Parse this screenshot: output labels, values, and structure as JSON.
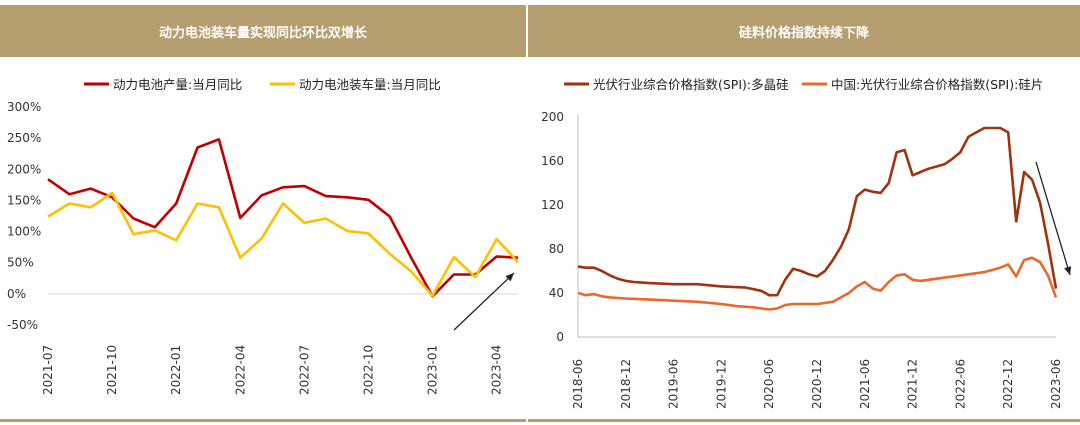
{
  "panels": [
    {
      "title": "动力电池装车量实现同比环比双增长"
    },
    {
      "title": "硅料价格指数持续下降"
    }
  ],
  "chart_data": [
    {
      "type": "line",
      "ylim": [
        -50,
        300
      ],
      "yticks": [
        300,
        250,
        200,
        150,
        100,
        50,
        0,
        -50
      ],
      "yticklabels": [
        "300%",
        "250%",
        "200%",
        "150%",
        "100%",
        "50%",
        "0%",
        "-50%"
      ],
      "x": [
        "2021-07",
        "2021-08",
        "2021-09",
        "2021-10",
        "2021-11",
        "2021-12",
        "2022-01",
        "2022-02",
        "2022-03",
        "2022-04",
        "2022-05",
        "2022-06",
        "2022-07",
        "2022-08",
        "2022-09",
        "2022-10",
        "2022-11",
        "2022-12",
        "2023-01",
        "2023-02",
        "2023-03",
        "2023-04",
        "2023-05"
      ],
      "xticks": [
        "2021-07",
        "2021-10",
        "2022-01",
        "2022-04",
        "2022-07",
        "2022-10",
        "2023-01",
        "2023-04"
      ],
      "legend_position": "top",
      "series": [
        {
          "name": "动力电池产量:当月同比",
          "color": "#c00000",
          "values": [
            184,
            160,
            169,
            155,
            121,
            107,
            145,
            235,
            248,
            122,
            158,
            171,
            173,
            157,
            155,
            151,
            124,
            58,
            -4,
            31,
            31,
            60,
            58
          ]
        },
        {
          "name": "动力电池装车量:当月同比",
          "color": "#ffc000",
          "values": [
            124,
            145,
            139,
            162,
            96,
            102,
            86,
            145,
            139,
            58,
            89,
            145,
            114,
            121,
            101,
            97,
            64,
            36,
            -3,
            59,
            27,
            88,
            51
          ]
        }
      ],
      "annotations": [
        {
          "type": "arrow",
          "direction": "up-right",
          "color": "#222222"
        }
      ]
    },
    {
      "type": "line",
      "ylim": [
        0,
        200
      ],
      "yticks": [
        200,
        160,
        120,
        80,
        40,
        0
      ],
      "xticks": [
        "2018-06",
        "2018-12",
        "2019-06",
        "2019-12",
        "2020-06",
        "2020-12",
        "2021-06",
        "2021-12",
        "2022-06",
        "2022-12",
        "2023-06"
      ],
      "legend_position": "top",
      "series": [
        {
          "name": "光伏行业综合价格指数(SPI):多晶硅",
          "color": "#a0330f",
          "points": [
            [
              "2018-06",
              64
            ],
            [
              "2018-07",
              63
            ],
            [
              "2018-08",
              63
            ],
            [
              "2018-09",
              60
            ],
            [
              "2018-10",
              56
            ],
            [
              "2018-11",
              53
            ],
            [
              "2018-12",
              51
            ],
            [
              "2019-01",
              50
            ],
            [
              "2019-03",
              49
            ],
            [
              "2019-06",
              48
            ],
            [
              "2019-09",
              48
            ],
            [
              "2019-12",
              46
            ],
            [
              "2020-03",
              45
            ],
            [
              "2020-05",
              42
            ],
            [
              "2020-06",
              38
            ],
            [
              "2020-07",
              38
            ],
            [
              "2020-08",
              52
            ],
            [
              "2020-09",
              62
            ],
            [
              "2020-10",
              60
            ],
            [
              "2020-11",
              57
            ],
            [
              "2020-12",
              55
            ],
            [
              "2021-01",
              60
            ],
            [
              "2021-02",
              70
            ],
            [
              "2021-03",
              82
            ],
            [
              "2021-04",
              98
            ],
            [
              "2021-05",
              128
            ],
            [
              "2021-06",
              134
            ],
            [
              "2021-07",
              132
            ],
            [
              "2021-08",
              131
            ],
            [
              "2021-09",
              140
            ],
            [
              "2021-10",
              168
            ],
            [
              "2021-11",
              170
            ],
            [
              "2021-12",
              147
            ],
            [
              "2022-01",
              150
            ],
            [
              "2022-02",
              153
            ],
            [
              "2022-03",
              155
            ],
            [
              "2022-04",
              157
            ],
            [
              "2022-05",
              162
            ],
            [
              "2022-06",
              168
            ],
            [
              "2022-07",
              182
            ],
            [
              "2022-08",
              186
            ],
            [
              "2022-09",
              190
            ],
            [
              "2022-10",
              190
            ],
            [
              "2022-11",
              190
            ],
            [
              "2022-12",
              186
            ],
            [
              "2023-01",
              105
            ],
            [
              "2023-02",
              150
            ],
            [
              "2023-03",
              143
            ],
            [
              "2023-04",
              122
            ],
            [
              "2023-05",
              85
            ],
            [
              "2023-06",
              44
            ]
          ]
        },
        {
          "name": "中国:光伏行业综合价格指数(SPI):硅片",
          "color": "#e8692a",
          "points": [
            [
              "2018-06",
              40
            ],
            [
              "2018-07",
              38
            ],
            [
              "2018-08",
              39
            ],
            [
              "2018-09",
              37
            ],
            [
              "2018-10",
              36
            ],
            [
              "2018-12",
              35
            ],
            [
              "2019-03",
              34
            ],
            [
              "2019-06",
              33
            ],
            [
              "2019-09",
              32
            ],
            [
              "2019-12",
              30
            ],
            [
              "2020-02",
              28
            ],
            [
              "2020-04",
              27
            ],
            [
              "2020-06",
              25
            ],
            [
              "2020-07",
              26
            ],
            [
              "2020-08",
              29
            ],
            [
              "2020-09",
              30
            ],
            [
              "2020-12",
              30
            ],
            [
              "2021-02",
              32
            ],
            [
              "2021-03",
              36
            ],
            [
              "2021-04",
              40
            ],
            [
              "2021-05",
              46
            ],
            [
              "2021-06",
              50
            ],
            [
              "2021-07",
              44
            ],
            [
              "2021-08",
              42
            ],
            [
              "2021-09",
              50
            ],
            [
              "2021-10",
              56
            ],
            [
              "2021-11",
              57
            ],
            [
              "2021-12",
              52
            ],
            [
              "2022-01",
              51
            ],
            [
              "2022-03",
              53
            ],
            [
              "2022-06",
              56
            ],
            [
              "2022-09",
              59
            ],
            [
              "2022-11",
              63
            ],
            [
              "2022-12",
              66
            ],
            [
              "2023-01",
              55
            ],
            [
              "2023-02",
              70
            ],
            [
              "2023-03",
              72
            ],
            [
              "2023-04",
              68
            ],
            [
              "2023-05",
              56
            ],
            [
              "2023-06",
              36
            ]
          ]
        }
      ],
      "annotations": [
        {
          "type": "arrow",
          "direction": "down-right",
          "color": "#222222"
        }
      ]
    }
  ]
}
